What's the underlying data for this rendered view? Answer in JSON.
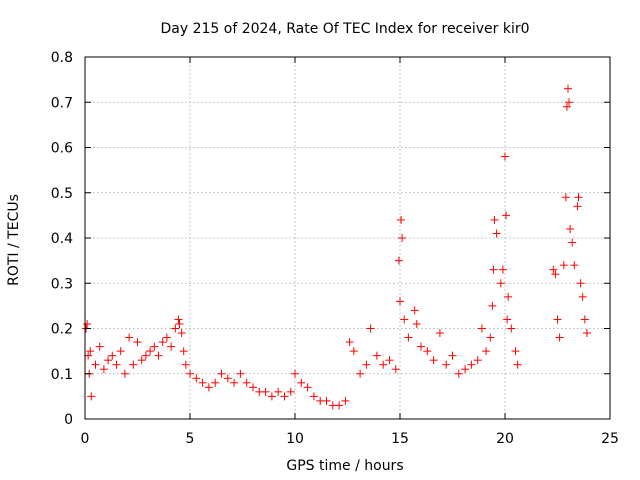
{
  "chart_data": {
    "type": "scatter",
    "title": "Day 215 of 2024, Rate Of TEC Index for receiver kir0",
    "xlabel": "GPS time / hours",
    "ylabel": "ROTI / TECUs",
    "xlim": [
      0,
      25
    ],
    "ylim": [
      0,
      0.8
    ],
    "xticks": [
      0,
      5,
      10,
      15,
      20,
      25
    ],
    "yticks": [
      0,
      0.1,
      0.2,
      0.3,
      0.4,
      0.5,
      0.6,
      0.7,
      0.8
    ],
    "grid": true,
    "marker": "plus",
    "color": "#ff0000",
    "series": [
      {
        "name": "ROTI",
        "x": [
          0.05,
          0.1,
          0.15,
          0.2,
          0.25,
          0.3,
          0.5,
          0.7,
          0.9,
          1.1,
          1.3,
          1.5,
          1.7,
          1.9,
          2.1,
          2.3,
          2.5,
          2.7,
          2.9,
          3.1,
          3.3,
          3.5,
          3.7,
          3.9,
          4.1,
          4.3,
          4.45,
          4.5,
          4.6,
          4.7,
          4.8,
          5.0,
          5.3,
          5.6,
          5.9,
          6.2,
          6.5,
          6.8,
          7.1,
          7.4,
          7.7,
          8.0,
          8.3,
          8.6,
          8.9,
          9.2,
          9.5,
          9.8,
          10.0,
          10.3,
          10.6,
          10.9,
          11.2,
          11.5,
          11.8,
          12.1,
          12.4,
          12.6,
          12.8,
          13.1,
          13.4,
          13.6,
          13.9,
          14.2,
          14.5,
          14.8,
          14.95,
          15.0,
          15.05,
          15.1,
          15.2,
          15.4,
          15.7,
          15.8,
          16.0,
          16.3,
          16.6,
          16.9,
          17.2,
          17.5,
          17.8,
          18.1,
          18.4,
          18.7,
          18.9,
          19.1,
          19.3,
          19.4,
          19.45,
          19.5,
          19.6,
          19.8,
          19.9,
          20.0,
          20.05,
          20.1,
          20.15,
          20.3,
          20.5,
          20.6,
          22.3,
          22.4,
          22.5,
          22.6,
          22.8,
          22.9,
          22.95,
          23.0,
          23.05,
          23.1,
          23.2,
          23.3,
          23.45,
          23.5,
          23.6,
          23.7,
          23.8,
          23.9
        ],
        "y": [
          0.2,
          0.21,
          0.14,
          0.1,
          0.15,
          0.05,
          0.12,
          0.16,
          0.11,
          0.13,
          0.14,
          0.12,
          0.15,
          0.1,
          0.18,
          0.12,
          0.17,
          0.13,
          0.14,
          0.15,
          0.16,
          0.14,
          0.17,
          0.18,
          0.16,
          0.2,
          0.22,
          0.21,
          0.19,
          0.15,
          0.12,
          0.1,
          0.09,
          0.08,
          0.07,
          0.08,
          0.1,
          0.09,
          0.08,
          0.1,
          0.08,
          0.07,
          0.06,
          0.06,
          0.05,
          0.06,
          0.05,
          0.06,
          0.1,
          0.08,
          0.07,
          0.05,
          0.04,
          0.04,
          0.03,
          0.03,
          0.04,
          0.17,
          0.15,
          0.1,
          0.12,
          0.2,
          0.14,
          0.12,
          0.13,
          0.11,
          0.35,
          0.26,
          0.44,
          0.4,
          0.22,
          0.18,
          0.24,
          0.21,
          0.16,
          0.15,
          0.13,
          0.19,
          0.12,
          0.14,
          0.1,
          0.11,
          0.12,
          0.13,
          0.2,
          0.15,
          0.18,
          0.25,
          0.33,
          0.44,
          0.41,
          0.3,
          0.33,
          0.58,
          0.45,
          0.22,
          0.27,
          0.2,
          0.15,
          0.12,
          0.33,
          0.32,
          0.22,
          0.18,
          0.34,
          0.49,
          0.69,
          0.73,
          0.7,
          0.42,
          0.39,
          0.34,
          0.47,
          0.49,
          0.3,
          0.27,
          0.22,
          0.19
        ]
      }
    ]
  }
}
